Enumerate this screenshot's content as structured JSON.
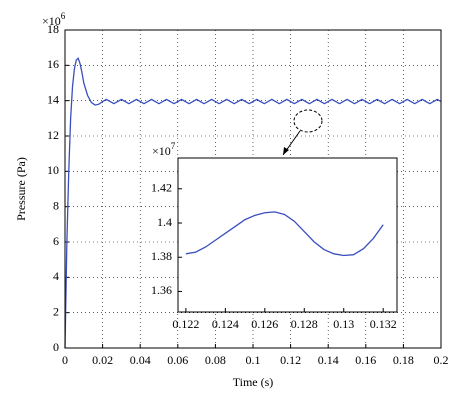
{
  "chart_data": [
    {
      "type": "line",
      "xlabel": "Time (s)",
      "ylabel": "Pressure (Pa)",
      "y_multiplier": {
        "base": "×10",
        "exponent": "6"
      },
      "xlim": [
        0,
        0.2
      ],
      "ylim": [
        0,
        18
      ],
      "xticks": [
        0,
        0.02,
        0.04,
        0.06,
        0.08,
        0.1,
        0.12,
        0.14,
        0.16,
        0.18,
        0.2
      ],
      "yticks": [
        0,
        2,
        4,
        6,
        8,
        10,
        12,
        14,
        16,
        18
      ],
      "grid": true,
      "color": "#3a4fbf",
      "x": [
        0,
        0.001,
        0.002,
        0.003,
        0.004,
        0.005,
        0.006,
        0.007,
        0.008,
        0.009,
        0.01,
        0.012,
        0.014,
        0.016,
        0.018,
        0.02,
        0.022,
        0.024,
        0.026,
        0.028,
        0.03,
        0.032,
        0.034,
        0.036,
        0.038,
        0.04,
        0.042,
        0.044,
        0.046,
        0.048,
        0.05,
        0.052,
        0.054,
        0.056,
        0.058,
        0.06,
        0.062,
        0.064,
        0.066,
        0.068,
        0.07,
        0.072,
        0.074,
        0.076,
        0.078,
        0.08,
        0.082,
        0.084,
        0.086,
        0.088,
        0.09,
        0.092,
        0.094,
        0.096,
        0.098,
        0.1,
        0.102,
        0.104,
        0.106,
        0.108,
        0.11,
        0.112,
        0.114,
        0.116,
        0.118,
        0.12,
        0.122,
        0.124,
        0.126,
        0.128,
        0.13,
        0.132,
        0.134,
        0.136,
        0.138,
        0.14,
        0.142,
        0.144,
        0.146,
        0.148,
        0.15,
        0.152,
        0.154,
        0.156,
        0.158,
        0.16,
        0.162,
        0.164,
        0.166,
        0.168,
        0.17,
        0.172,
        0.174,
        0.176,
        0.178,
        0.18,
        0.182,
        0.184,
        0.186,
        0.188,
        0.19,
        0.192,
        0.194,
        0.196,
        0.198,
        0.2
      ],
      "values": [
        0,
        6,
        10,
        13,
        14.8,
        15.8,
        16.3,
        16.4,
        16.1,
        15.6,
        15,
        14.3,
        13.9,
        13.75,
        13.8,
        13.95,
        14.07,
        13.95,
        13.83,
        13.95,
        14.07,
        13.95,
        13.83,
        13.95,
        14.07,
        13.95,
        13.83,
        13.95,
        14.07,
        13.95,
        13.83,
        13.95,
        14.07,
        13.95,
        13.83,
        13.95,
        14.07,
        13.95,
        13.83,
        13.95,
        14.07,
        13.95,
        13.83,
        13.95,
        14.07,
        13.95,
        13.83,
        13.95,
        14.07,
        13.95,
        13.83,
        13.95,
        14.07,
        13.95,
        13.83,
        13.95,
        14.07,
        13.95,
        13.83,
        13.95,
        14.07,
        13.95,
        13.83,
        13.95,
        14.07,
        13.95,
        13.83,
        13.95,
        14.07,
        13.95,
        13.83,
        13.95,
        14.07,
        13.95,
        13.83,
        13.95,
        14.07,
        13.95,
        13.83,
        13.95,
        14.07,
        13.95,
        13.83,
        13.95,
        14.07,
        13.95,
        13.83,
        13.95,
        14.07,
        13.95,
        13.83,
        13.95,
        14.07,
        13.95,
        13.83,
        13.95,
        14.07,
        13.95,
        13.83,
        13.95,
        14.07,
        13.95,
        13.83,
        13.95,
        14.07,
        13.95
      ]
    },
    {
      "type": "line",
      "y_multiplier": {
        "base": "×10",
        "exponent": "7"
      },
      "xlim": [
        0.1216,
        0.1327
      ],
      "ylim": [
        1.348,
        1.438
      ],
      "xticks": [
        0.122,
        0.124,
        0.126,
        0.128,
        0.13,
        0.132
      ],
      "yticks": [
        1.36,
        1.38,
        1.4,
        1.42
      ],
      "grid": false,
      "color": "#3a4fbf",
      "x": [
        0.122,
        0.1225,
        0.123,
        0.1235,
        0.124,
        0.1245,
        0.125,
        0.1255,
        0.126,
        0.1265,
        0.127,
        0.1275,
        0.128,
        0.1285,
        0.129,
        0.1295,
        0.13,
        0.1305,
        0.131,
        0.1315,
        0.132
      ],
      "values": [
        1.382,
        1.383,
        1.386,
        1.39,
        1.394,
        1.398,
        1.402,
        1.4045,
        1.406,
        1.4065,
        1.405,
        1.401,
        1.395,
        1.389,
        1.3845,
        1.382,
        1.381,
        1.3815,
        1.385,
        1.391,
        1.399
      ]
    }
  ]
}
